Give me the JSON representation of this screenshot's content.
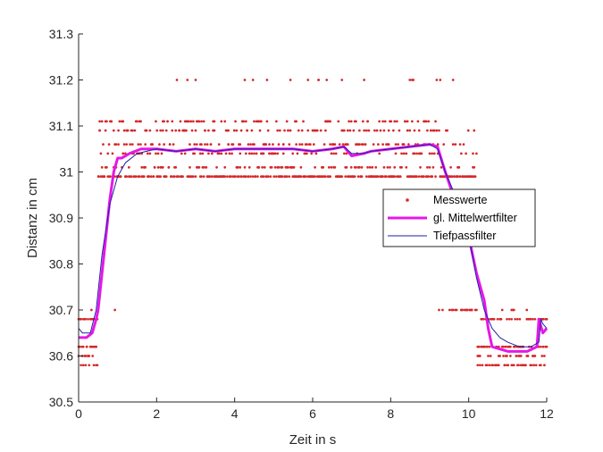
{
  "chart_data": {
    "type": "line",
    "title": "",
    "xlabel": "Zeit in s",
    "ylabel": "Distanz in cm",
    "xlim": [
      0,
      12
    ],
    "ylim": [
      30.5,
      31.3
    ],
    "xticks": [
      0,
      2,
      4,
      6,
      8,
      10,
      12
    ],
    "yticks": [
      30.5,
      30.6,
      30.7,
      30.8,
      30.9,
      31.0,
      31.1,
      31.2,
      31.3
    ],
    "ytick_labels": [
      "30.5",
      "30.6",
      "30.7",
      "30.8",
      "30.9",
      "31",
      "31.1",
      "31.2",
      "31.3"
    ],
    "grid": false,
    "legend_position": "right",
    "series": [
      {
        "name": "Messwerte",
        "style": "markers",
        "color": "#d62728",
        "levels": [
          30.58,
          30.6,
          30.62,
          30.68,
          30.7,
          30.99,
          31.01,
          31.04,
          31.06,
          31.09,
          31.11,
          31.2
        ],
        "segments": [
          {
            "t0": 0.0,
            "t1": 0.5,
            "center": 30.62,
            "spread": 0.06
          },
          {
            "t0": 0.5,
            "t1": 1.0,
            "center": 31.01,
            "spread": 0.12
          },
          {
            "t0": 1.0,
            "t1": 9.2,
            "center": 31.03,
            "spread": 0.09
          },
          {
            "t0": 9.2,
            "t1": 10.2,
            "center": 30.95,
            "spread": 0.15
          },
          {
            "t0": 10.2,
            "t1": 12.0,
            "center": 30.62,
            "spread": 0.06
          }
        ]
      },
      {
        "name": "gl. Mittelwertfilter",
        "style": "line",
        "color": "#e617e6",
        "x": [
          0,
          0.2,
          0.35,
          0.45,
          0.5,
          0.6,
          0.7,
          0.8,
          0.9,
          1.0,
          1.1,
          1.3,
          1.6,
          2.0,
          2.5,
          3.0,
          3.5,
          4.0,
          4.5,
          5.0,
          5.5,
          6.0,
          6.5,
          6.8,
          7.0,
          7.3,
          7.5,
          8.0,
          8.5,
          9.0,
          9.2,
          9.4,
          9.6,
          9.8,
          10.0,
          10.2,
          10.4,
          10.5,
          10.6,
          11.0,
          11.5,
          11.75,
          11.8,
          11.9,
          12.0
        ],
        "y": [
          30.64,
          30.64,
          30.65,
          30.68,
          30.7,
          30.78,
          30.86,
          30.94,
          31.0,
          31.03,
          31.03,
          31.04,
          31.05,
          31.05,
          31.045,
          31.05,
          31.045,
          31.05,
          31.05,
          31.05,
          31.05,
          31.045,
          31.05,
          31.055,
          31.035,
          31.04,
          31.045,
          31.05,
          31.055,
          31.06,
          31.055,
          31.0,
          30.95,
          30.9,
          30.86,
          30.78,
          30.72,
          30.66,
          30.62,
          30.61,
          30.61,
          30.62,
          30.68,
          30.65,
          30.66
        ]
      },
      {
        "name": "Tiefpassfilter",
        "style": "line",
        "color": "#1f1fa8",
        "x": [
          0,
          0.1,
          0.3,
          0.45,
          0.6,
          0.8,
          1.0,
          1.2,
          1.5,
          2.0,
          2.5,
          3.0,
          3.5,
          4.0,
          4.5,
          5.0,
          5.5,
          6.0,
          6.5,
          6.8,
          7.0,
          7.3,
          7.5,
          8.0,
          8.5,
          9.0,
          9.2,
          9.4,
          9.6,
          9.8,
          10.0,
          10.2,
          10.4,
          10.6,
          10.8,
          11.0,
          11.3,
          11.6,
          11.8,
          11.85,
          11.9,
          12.0
        ],
        "y": [
          30.66,
          30.65,
          30.65,
          30.7,
          30.82,
          30.93,
          30.99,
          31.02,
          31.04,
          31.05,
          31.045,
          31.05,
          31.045,
          31.05,
          31.05,
          31.05,
          31.05,
          31.045,
          31.05,
          31.055,
          31.04,
          31.04,
          31.045,
          31.05,
          31.055,
          31.06,
          31.05,
          31.0,
          30.96,
          30.92,
          30.86,
          30.77,
          30.7,
          30.66,
          30.64,
          30.63,
          30.62,
          30.62,
          30.63,
          30.68,
          30.67,
          30.66
        ]
      }
    ]
  }
}
